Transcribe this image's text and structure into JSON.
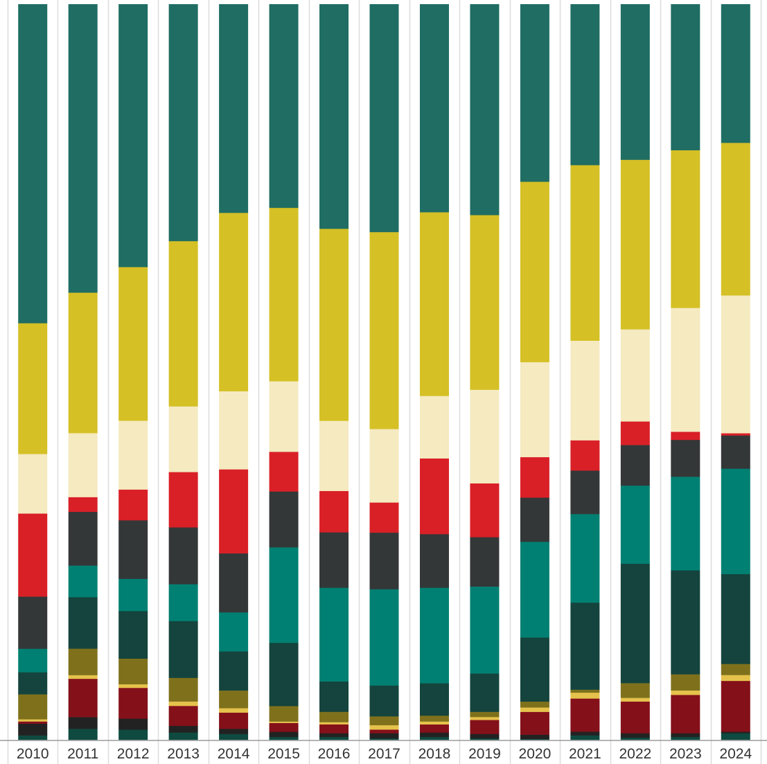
{
  "chart_data": {
    "type": "bar",
    "stacked": true,
    "normalized": true,
    "categories": [
      "2010",
      "2011",
      "2012",
      "2013",
      "2014",
      "2015",
      "2016",
      "2017",
      "2018",
      "2019",
      "2020",
      "2021",
      "2022",
      "2023",
      "2024"
    ],
    "grid": "vertical lines between bars",
    "legend": "none",
    "title": "",
    "xlabel": "",
    "ylabel": "",
    "ylim": [
      0,
      100
    ],
    "series": [
      {
        "color": "#0e4a40",
        "values": [
          0.6,
          1.5,
          1.4,
          1.0,
          0.8,
          0.4,
          0.4,
          0.2,
          0.4,
          0.2,
          0.1,
          0.6,
          0.3,
          0.4,
          0.9
        ]
      },
      {
        "color": "#222222",
        "values": [
          1.6,
          1.6,
          1.5,
          0.9,
          0.7,
          0.7,
          0.5,
          0.7,
          0.6,
          0.6,
          0.6,
          0.5,
          0.6,
          0.5,
          0.2
        ]
      },
      {
        "color": "#84101a",
        "values": [
          0.3,
          5.2,
          4.2,
          2.7,
          2.2,
          1.2,
          1.2,
          0.5,
          1.1,
          1.9,
          3.1,
          4.5,
          4.3,
          5.2,
          6.9
        ]
      },
      {
        "color": "#e5c24c",
        "values": [
          0.3,
          0.5,
          0.5,
          0.6,
          0.6,
          0.2,
          0.3,
          0.6,
          0.4,
          0.4,
          0.6,
          0.8,
          0.5,
          0.6,
          0.8
        ]
      },
      {
        "color": "#7f711c",
        "values": [
          3.4,
          3.6,
          3.5,
          3.2,
          2.4,
          2.1,
          1.4,
          1.2,
          0.8,
          0.7,
          0.8,
          0.4,
          2.0,
          2.2,
          1.5
        ]
      },
      {
        "color": "#14443d",
        "values": [
          3.0,
          7.0,
          6.5,
          7.7,
          5.3,
          8.6,
          4.1,
          4.2,
          4.4,
          5.2,
          8.7,
          11.8,
          16.2,
          14.1,
          12.2
        ]
      },
      {
        "color": "#008072",
        "values": [
          3.2,
          4.3,
          4.4,
          5.0,
          5.3,
          13.0,
          12.7,
          13.1,
          13.0,
          11.8,
          13.0,
          12.0,
          10.6,
          12.7,
          14.3
        ]
      },
      {
        "color": "#343738",
        "values": [
          7.1,
          7.3,
          8.0,
          7.7,
          8.0,
          7.6,
          7.5,
          7.7,
          7.3,
          6.7,
          6.0,
          5.9,
          5.5,
          5.0,
          4.5
        ]
      },
      {
        "color": "#d92027",
        "values": [
          11.3,
          2.0,
          4.2,
          7.5,
          11.4,
          5.4,
          5.6,
          4.1,
          10.3,
          7.3,
          5.5,
          4.1,
          3.2,
          1.1,
          0.3
        ]
      },
      {
        "color": "#f5eac0",
        "values": [
          8.1,
          8.7,
          9.4,
          8.9,
          10.6,
          9.6,
          9.5,
          10.0,
          8.5,
          12.7,
          12.9,
          13.5,
          12.5,
          16.8,
          18.7
        ]
      },
      {
        "color": "#d5c026",
        "values": [
          17.8,
          19.1,
          21.0,
          22.4,
          24.2,
          23.6,
          26.0,
          26.8,
          25.0,
          23.7,
          24.5,
          23.8,
          23.0,
          21.4,
          20.7
        ]
      },
      {
        "color": "#1f6d63",
        "values": [
          43.4,
          39.2,
          35.9,
          32.1,
          28.3,
          27.7,
          30.4,
          31.0,
          28.3,
          28.6,
          24.1,
          21.8,
          21.1,
          19.8,
          18.8
        ]
      }
    ]
  }
}
